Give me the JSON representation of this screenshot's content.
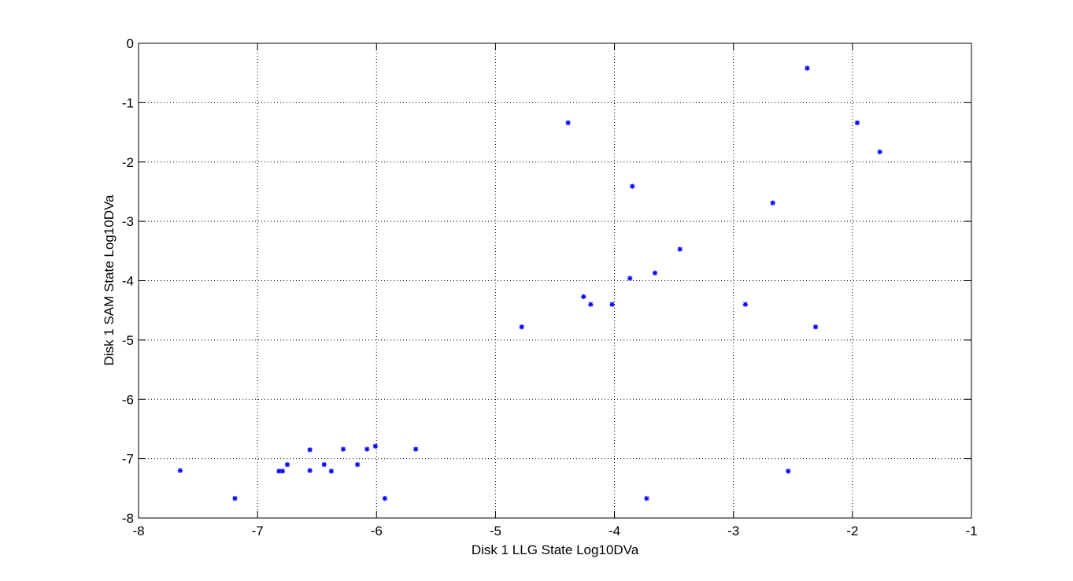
{
  "chart_data": {
    "type": "scatter",
    "title": "",
    "xlabel": "Disk 1 LLG State Log10DVa",
    "ylabel": "Disk 1 SAM State Log10DVa",
    "xlim": [
      -8,
      -1
    ],
    "ylim": [
      -8,
      0
    ],
    "xticks": [
      "-8",
      "-7",
      "-6",
      "-5",
      "-4",
      "-3",
      "-2",
      "-1"
    ],
    "yticks": [
      "0",
      "-1",
      "-2",
      "-3",
      "-4",
      "-5",
      "-6",
      "-7",
      "-8"
    ],
    "grid": true,
    "marker": "*",
    "color": "#0000ff",
    "series": [
      {
        "points": [
          {
            "x": -7.65,
            "y": -7.2
          },
          {
            "x": -7.19,
            "y": -7.67
          },
          {
            "x": -6.82,
            "y": -7.21
          },
          {
            "x": -6.79,
            "y": -7.21
          },
          {
            "x": -6.75,
            "y": -7.1
          },
          {
            "x": -6.56,
            "y": -6.85
          },
          {
            "x": -6.56,
            "y": -7.2
          },
          {
            "x": -6.44,
            "y": -7.1
          },
          {
            "x": -6.38,
            "y": -7.21
          },
          {
            "x": -6.28,
            "y": -6.84
          },
          {
            "x": -6.16,
            "y": -7.1
          },
          {
            "x": -6.08,
            "y": -6.84
          },
          {
            "x": -6.01,
            "y": -6.79
          },
          {
            "x": -5.93,
            "y": -7.67
          },
          {
            "x": -5.67,
            "y": -6.84
          },
          {
            "x": -4.78,
            "y": -4.78
          },
          {
            "x": -4.39,
            "y": -1.34
          },
          {
            "x": -4.26,
            "y": -4.27
          },
          {
            "x": -4.2,
            "y": -4.4
          },
          {
            "x": -4.02,
            "y": -4.4
          },
          {
            "x": -3.87,
            "y": -3.96
          },
          {
            "x": -3.85,
            "y": -2.41
          },
          {
            "x": -3.73,
            "y": -7.67
          },
          {
            "x": -3.66,
            "y": -3.87
          },
          {
            "x": -3.45,
            "y": -3.47
          },
          {
            "x": -2.9,
            "y": -4.4
          },
          {
            "x": -2.67,
            "y": -2.69
          },
          {
            "x": -2.54,
            "y": -7.21
          },
          {
            "x": -2.38,
            "y": -0.42
          },
          {
            "x": -2.31,
            "y": -4.78
          },
          {
            "x": -1.96,
            "y": -1.34
          },
          {
            "x": -1.77,
            "y": -1.83
          }
        ]
      }
    ]
  }
}
